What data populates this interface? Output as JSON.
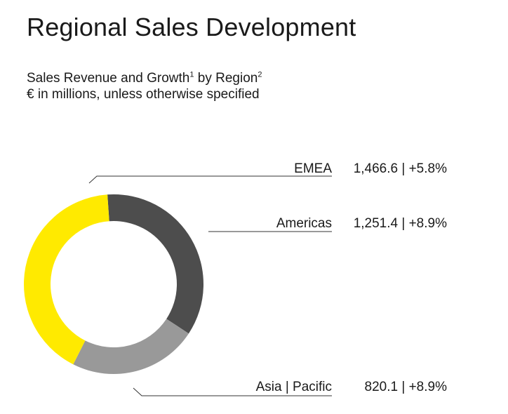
{
  "header": {
    "title": "Regional Sales Development",
    "subtitle_part1": "Sales Revenue and Growth",
    "subtitle_sup1": "1",
    "subtitle_part2": " by Region",
    "subtitle_sup2": "2",
    "units": "€ in millions, unless otherwise specified"
  },
  "chart_data": {
    "type": "pie",
    "variant": "donut",
    "title": "Sales Revenue and Growth by Region",
    "unit": "€ in millions",
    "categories": [
      "EMEA",
      "Americas",
      "Asia | Pacific"
    ],
    "values": [
      1466.6,
      1251.4,
      820.1
    ],
    "growth_pct": [
      5.8,
      8.9,
      8.9
    ],
    "value_labels": [
      "1,466.6 | +5.8%",
      "1,251.4 | +8.9%",
      "820.1 | +8.9%"
    ],
    "colors": [
      "#ffea00",
      "#4d4d4d",
      "#999999"
    ],
    "legend": "right"
  }
}
